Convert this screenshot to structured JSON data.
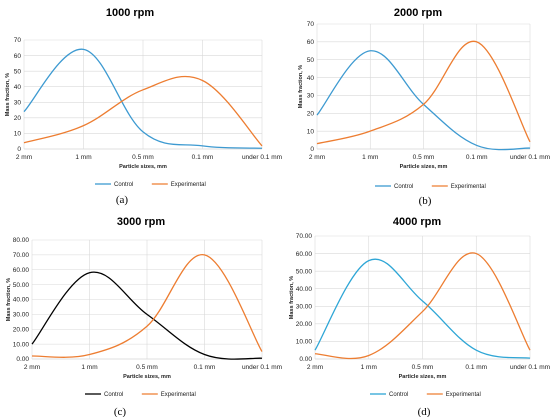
{
  "chart_data": [
    {
      "type": "line",
      "title": "1000 rpm",
      "panel": "(a)",
      "xlabel": "Particle sizes, mm",
      "ylabel": "Mass fraction, %",
      "x": [
        "2 mm",
        "1 mm",
        "0.5 mm",
        "0.1 mm",
        "under 0.1 mm"
      ],
      "yticks": [
        "0",
        "10",
        "20",
        "30",
        "40",
        "50",
        "60",
        "70"
      ],
      "ylim": [
        0,
        70
      ],
      "grid": true,
      "legend": "bottom",
      "series": [
        {
          "name": "Control",
          "color": "#3d9ad1",
          "values": [
            24,
            64,
            11,
            2,
            0.5
          ]
        },
        {
          "name": "Experimental",
          "color": "#ed7d31",
          "values": [
            4,
            15,
            38,
            44,
            2
          ]
        }
      ]
    },
    {
      "type": "line",
      "title": "2000 rpm",
      "panel": "(b)",
      "xlabel": "Particle sizes, mm",
      "ylabel": "Mass fraction, %",
      "x": [
        "2 mm",
        "1 mm",
        "0.5 mm",
        "0.1 mm",
        "under 0.1 mm"
      ],
      "yticks": [
        "0",
        "10",
        "20",
        "30",
        "40",
        "50",
        "60",
        "70"
      ],
      "ylim": [
        0,
        70
      ],
      "grid": true,
      "legend": "bottom",
      "series": [
        {
          "name": "Control",
          "color": "#3d9ad1",
          "values": [
            19,
            55,
            25,
            2,
            0.5
          ]
        },
        {
          "name": "Experimental",
          "color": "#ed7d31",
          "values": [
            3,
            10,
            25,
            60,
            4
          ]
        }
      ]
    },
    {
      "type": "line",
      "title": "3000 rpm",
      "panel": "(c)",
      "xlabel": "Particle sizes, mm",
      "ylabel": "Mass fraction, %",
      "x": [
        "2 mm",
        "1 mm",
        "0.5 mm",
        "0.1 mm",
        "under 0.1 mm"
      ],
      "yticks": [
        "0.00",
        "10.00",
        "20.00",
        "30.00",
        "40.00",
        "50.00",
        "60.00",
        "70.00",
        "80.00"
      ],
      "ylim": [
        0,
        80
      ],
      "grid": true,
      "legend": "bottom",
      "series": [
        {
          "name": "Control",
          "color": "#000000",
          "values": [
            10,
            58,
            30,
            3,
            0.5
          ]
        },
        {
          "name": "Experimental",
          "color": "#ed7d31",
          "values": [
            2,
            3,
            22,
            70,
            5
          ]
        }
      ]
    },
    {
      "type": "line",
      "title": "4000 rpm",
      "panel": "(d)",
      "xlabel": "Particle sizes, mm",
      "ylabel": "Mass fraction, %",
      "x": [
        "2 mm",
        "1 mm",
        "0.5 mm",
        "0.1 mm",
        "under 0.1 mm"
      ],
      "yticks": [
        "0.00",
        "10.00",
        "20.00",
        "30.00",
        "40.00",
        "50.00",
        "60.00",
        "70.00"
      ],
      "ylim": [
        0,
        70
      ],
      "grid": true,
      "legend": "bottom",
      "series": [
        {
          "name": "Control",
          "color": "#2ea6d6",
          "values": [
            5,
            56,
            33,
            5,
            0.5
          ]
        },
        {
          "name": "Experimental",
          "color": "#ed7d31",
          "values": [
            3,
            2,
            27,
            60,
            5
          ]
        }
      ]
    }
  ]
}
